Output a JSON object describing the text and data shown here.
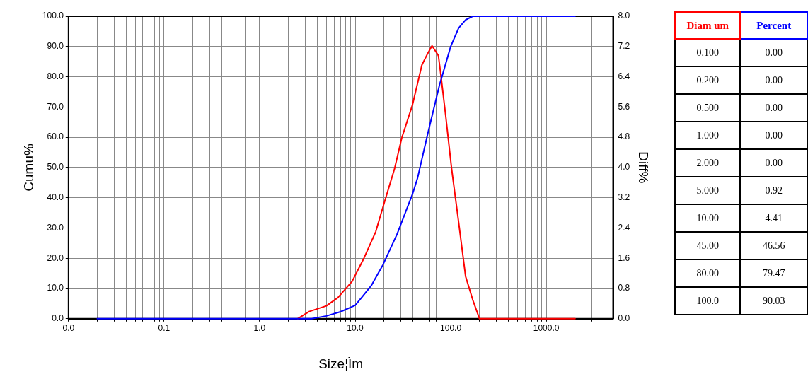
{
  "chart_data": [
    {
      "type": "line",
      "xlabel": "Size¦Ìm",
      "ylabel": "Cumu%",
      "y2label": "Diff%",
      "log": "x",
      "grid": true,
      "marker": "none",
      "line_style": "solid",
      "xlim": [
        0.01,
        5000
      ],
      "ylim": [
        0,
        100
      ],
      "y2lim": [
        0,
        8
      ],
      "xticks": [
        {
          "value": 0.01,
          "label": "0.0"
        },
        {
          "value": 0.02,
          "label": null
        },
        {
          "value": 0.03,
          "label": null
        },
        {
          "value": 0.04,
          "label": null
        },
        {
          "value": 0.05,
          "label": null
        },
        {
          "value": 0.06,
          "label": null
        },
        {
          "value": 0.07,
          "label": null
        },
        {
          "value": 0.08,
          "label": null
        },
        {
          "value": 0.09,
          "label": null
        },
        {
          "value": 0.1,
          "label": "0.1"
        },
        {
          "value": 0.2,
          "label": null
        },
        {
          "value": 0.3,
          "label": null
        },
        {
          "value": 0.4,
          "label": null
        },
        {
          "value": 0.5,
          "label": null
        },
        {
          "value": 0.6,
          "label": null
        },
        {
          "value": 0.7,
          "label": null
        },
        {
          "value": 0.8,
          "label": null
        },
        {
          "value": 0.9,
          "label": null
        },
        {
          "value": 1,
          "label": "1.0"
        },
        {
          "value": 2,
          "label": null
        },
        {
          "value": 3,
          "label": null
        },
        {
          "value": 4,
          "label": null
        },
        {
          "value": 5,
          "label": null
        },
        {
          "value": 6,
          "label": null
        },
        {
          "value": 7,
          "label": null
        },
        {
          "value": 8,
          "label": null
        },
        {
          "value": 9,
          "label": null
        },
        {
          "value": 10,
          "label": "10.0"
        },
        {
          "value": 20,
          "label": null
        },
        {
          "value": 30,
          "label": null
        },
        {
          "value": 40,
          "label": null
        },
        {
          "value": 50,
          "label": null
        },
        {
          "value": 60,
          "label": null
        },
        {
          "value": 70,
          "label": null
        },
        {
          "value": 80,
          "label": null
        },
        {
          "value": 90,
          "label": null
        },
        {
          "value": 100,
          "label": "100.0"
        },
        {
          "value": 200,
          "label": null
        },
        {
          "value": 300,
          "label": null
        },
        {
          "value": 400,
          "label": null
        },
        {
          "value": 500,
          "label": null
        },
        {
          "value": 600,
          "label": null
        },
        {
          "value": 700,
          "label": null
        },
        {
          "value": 800,
          "label": null
        },
        {
          "value": 900,
          "label": null
        },
        {
          "value": 1000,
          "label": "1000.0"
        },
        {
          "value": 2000,
          "label": null
        },
        {
          "value": 3000,
          "label": null
        },
        {
          "value": 4000,
          "label": null
        }
      ],
      "yticks": [
        {
          "value": 0,
          "label": "0.0"
        },
        {
          "value": 10,
          "label": "10.0"
        },
        {
          "value": 20,
          "label": "20.0"
        },
        {
          "value": 30,
          "label": "30.0"
        },
        {
          "value": 40,
          "label": "40.0"
        },
        {
          "value": 50,
          "label": "50.0"
        },
        {
          "value": 60,
          "label": "60.0"
        },
        {
          "value": 70,
          "label": "70.0"
        },
        {
          "value": 80,
          "label": "80.0"
        },
        {
          "value": 90,
          "label": "90.0"
        },
        {
          "value": 100,
          "label": "100.0"
        }
      ],
      "y2ticks": [
        {
          "value": 0,
          "label": "0.0"
        },
        0.8,
        1.6,
        2.4,
        3.2,
        {
          "value": 4,
          "label": "4.0"
        },
        4.8,
        5.6,
        6.4,
        7.2,
        {
          "value": 8,
          "label": "8.0"
        }
      ],
      "series": [
        {
          "color": "#0000ff",
          "x": [
            0.02,
            3.5,
            5,
            7,
            10,
            14.7,
            19.5,
            27.4,
            39.7,
            45,
            57.5,
            76.6,
            80,
            100,
            121,
            143,
            170,
            2000
          ],
          "values": [
            0,
            0,
            0.92,
            2.3,
            4.41,
            10.9,
            17.8,
            27.9,
            41.1,
            46.56,
            61.2,
            77.5,
            79.47,
            90.03,
            96.1,
            98.8,
            100,
            100
          ]
        },
        {
          "color": "#ff0000",
          "axis": "y2",
          "x": [
            2.5,
            3.3,
            5,
            6.6,
            9.3,
            12.4,
            16.4,
            20,
            25.9,
            30.7,
            39.7,
            49.9,
            57.5,
            63.7,
            74.3,
            78.7,
            88.3,
            102,
            121,
            143,
            170,
            200,
            2000
          ],
          "values": [
            0,
            0.19,
            0.34,
            0.56,
            0.99,
            1.61,
            2.3,
            3.04,
            3.98,
            4.78,
            5.65,
            6.71,
            7.02,
            7.22,
            6.96,
            6.46,
            5.4,
            3.98,
            2.55,
            1.12,
            0.5,
            0,
            0
          ]
        }
      ]
    },
    {
      "type": "other",
      "xlabel": "Diam um",
      "categories": [
        "0.100",
        "0.200",
        "0.500",
        "1.000",
        "2.000",
        "5.000",
        "10.00",
        "45.00",
        "80.00",
        "100.0"
      ],
      "series": [
        {
          "name": "Percent",
          "color": "#0000ff",
          "values": [
            0,
            0,
            0,
            0,
            0,
            0.92,
            4.41,
            46.56,
            79.47,
            90.03
          ],
          "value_labels": [
            "0.00",
            "0.00",
            "0.00",
            "0.00",
            "0.00",
            "0.92",
            "4.41",
            "46.56",
            "79.47",
            "90.03"
          ]
        }
      ]
    }
  ]
}
